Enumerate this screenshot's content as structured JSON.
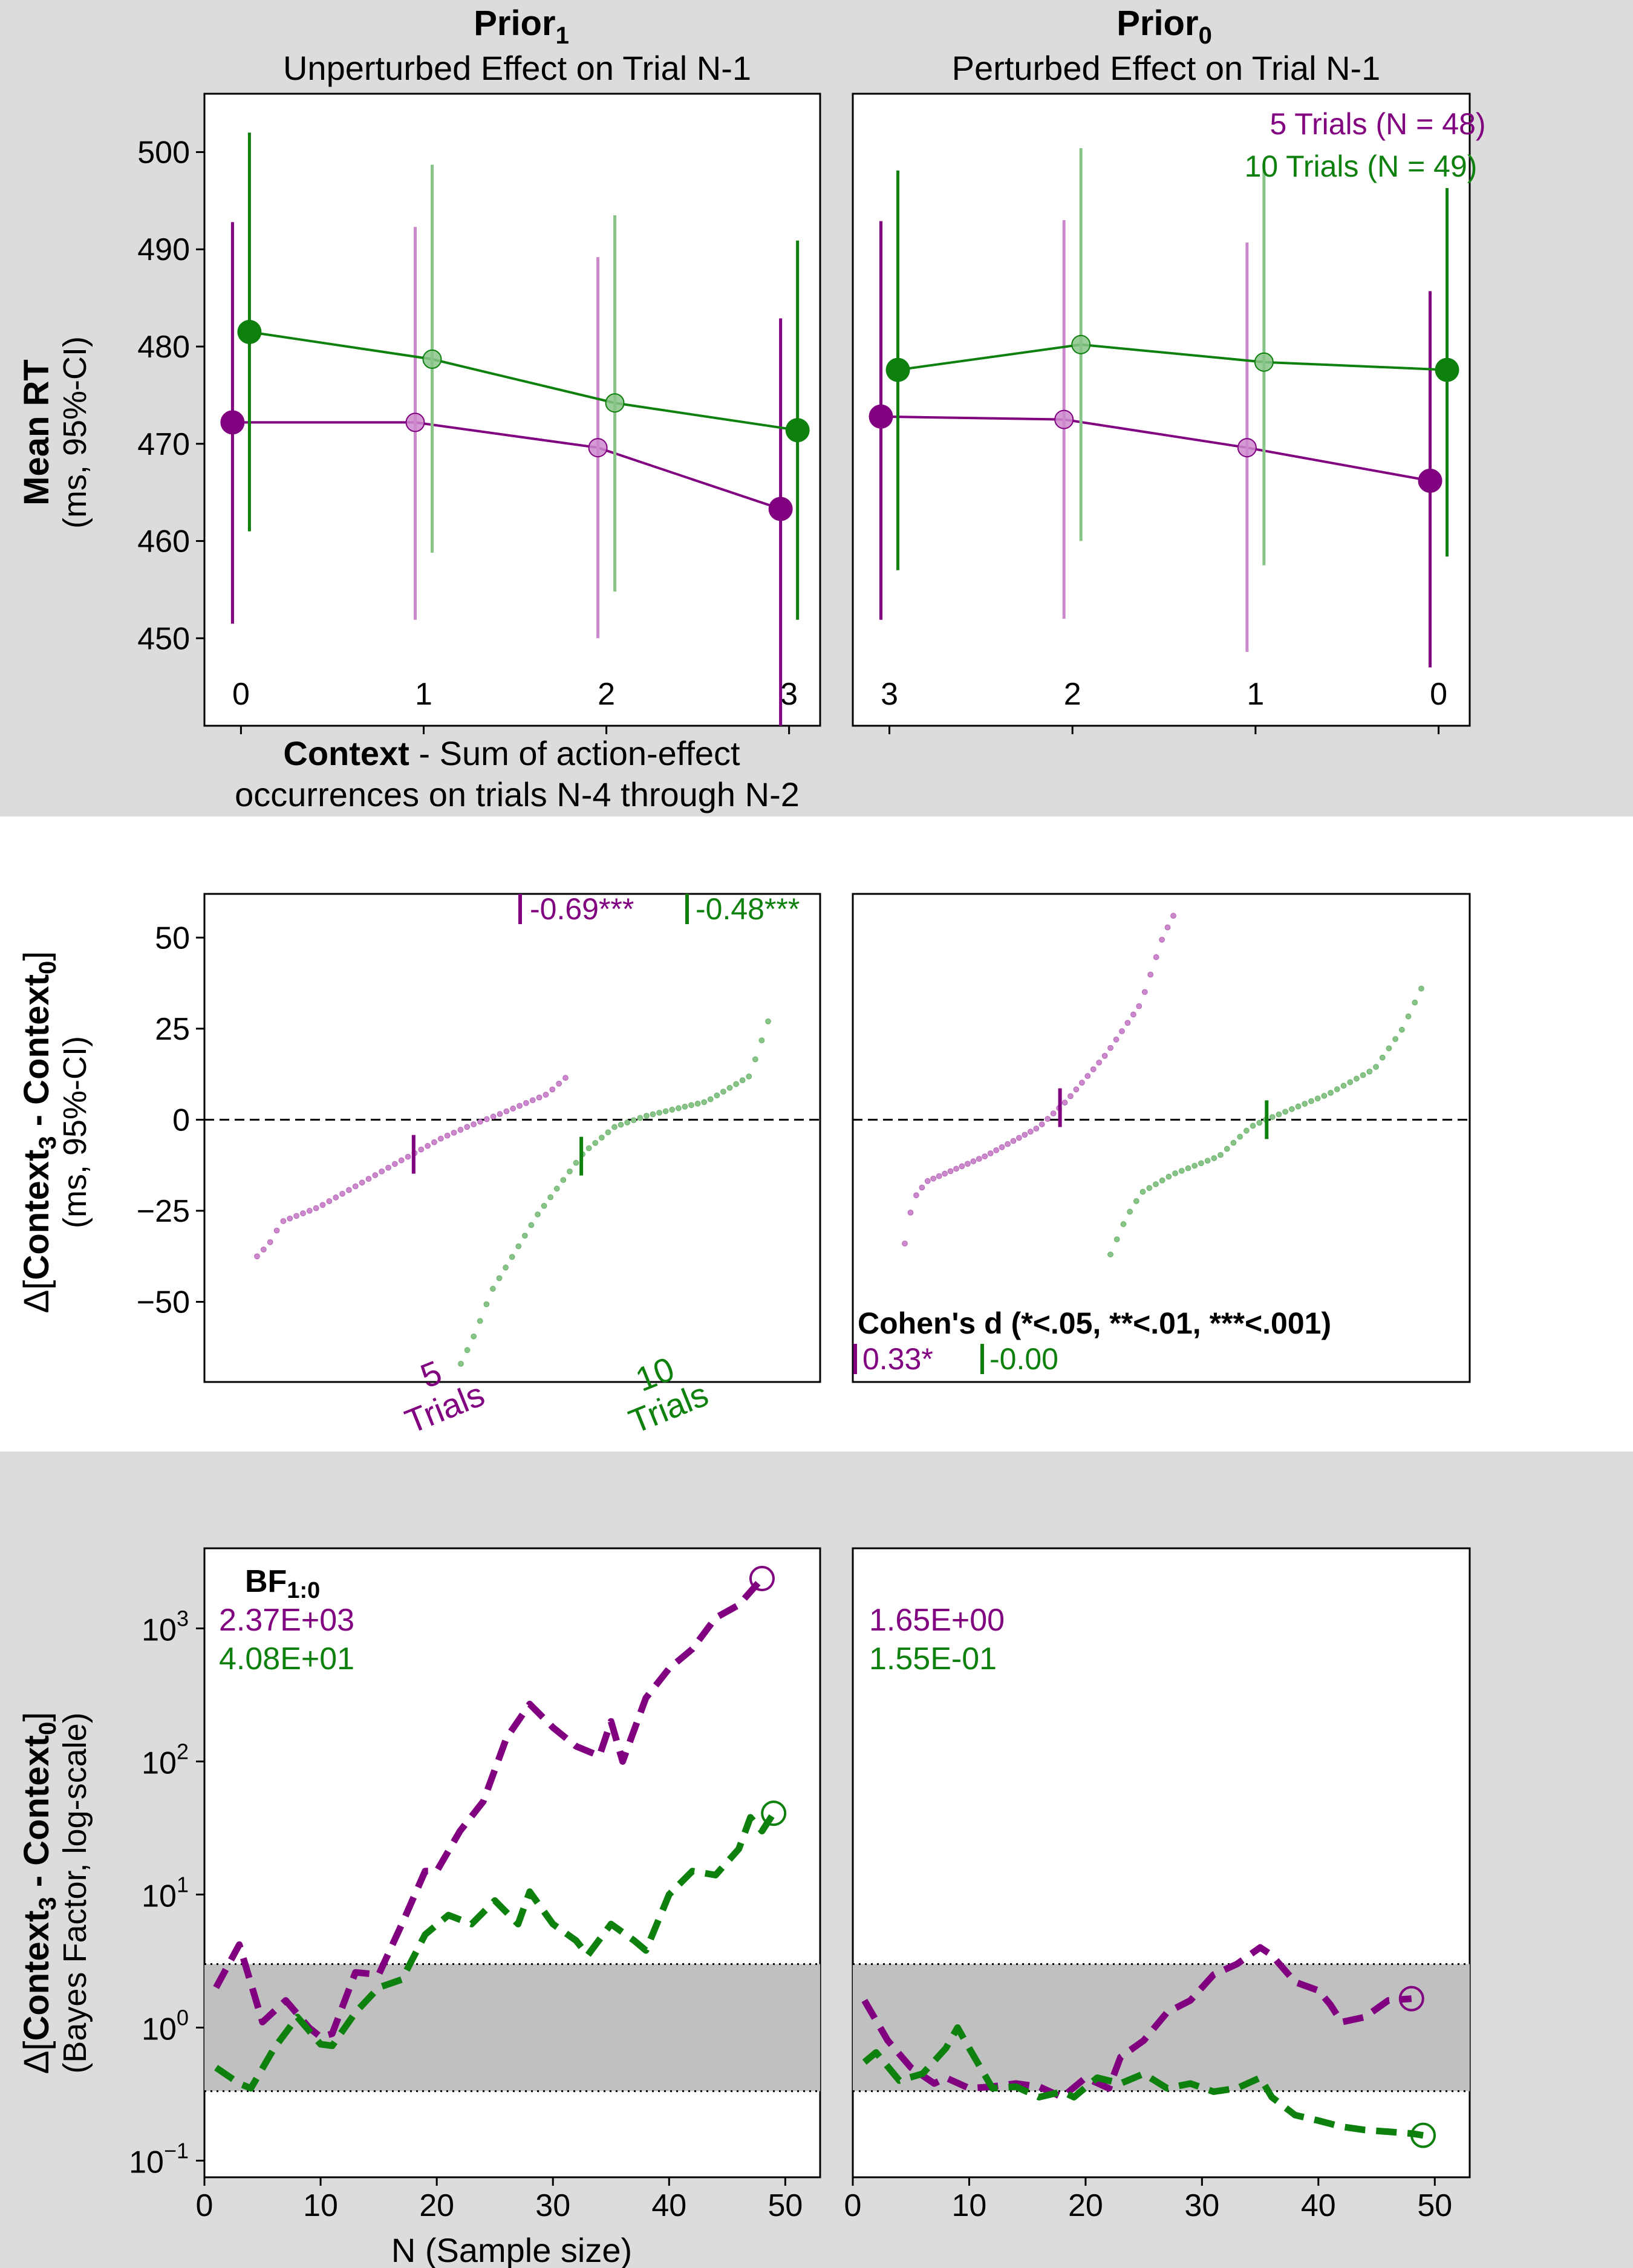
{
  "colors": {
    "purple": "#800080",
    "green": "#0e800e",
    "light_purple": "#cc88cc",
    "light_green": "#88c488",
    "band_bg": "#dcdcdc",
    "region": "#c0c0c0"
  },
  "row1": {
    "left": {
      "title_main": "Prior",
      "title_sub": "1",
      "subtitle": "Unperturbed Effect on Trial N-1"
    },
    "right": {
      "title_main": "Prior",
      "title_sub": "0",
      "subtitle": "Perturbed Effect on Trial N-1"
    },
    "ylabel_bold": "Mean RT",
    "ylabel_sub": "(ms, 95%-CI)",
    "xlabel_bold": "Context",
    "xlabel_rest": " - Sum of action-effect",
    "xlabel_line2": "occurrences on trials N-4 through N-2",
    "legend": [
      "5 Trials (N = 48)",
      "10 Trials (N = 49)"
    ]
  },
  "row2": {
    "ylabel_prefix": "Δ[",
    "ylabel_c3": "Context",
    "ylabel_c3_sub": "3",
    "ylabel_mid": " - ",
    "ylabel_c0": "Context",
    "ylabel_c0_sub": "0",
    "ylabel_suffix": "]",
    "ylabel_sub": "(ms, 95%-CI)",
    "left_d": [
      "-0.69***",
      "-0.48***"
    ],
    "right_d": [
      "0.33*",
      "-0.00"
    ],
    "cohen_label": "Cohen's d (*<.05, **<.01, ***<.001)",
    "label_5": [
      "5",
      "Trials"
    ],
    "label_10": [
      "10",
      "Trials"
    ]
  },
  "row3": {
    "ylabel_prefix": "Δ[",
    "ylabel_c3": "Context",
    "ylabel_c3_sub": "3",
    "ylabel_mid": " - ",
    "ylabel_c0": "Context",
    "ylabel_c0_sub": "0",
    "ylabel_suffix": "]",
    "ylabel_sub": "(Bayes Factor, log-scale)",
    "bf_label": "BF",
    "bf_sub": "1:0",
    "left_bf": [
      "2.37E+03",
      "4.08E+01"
    ],
    "right_bf": [
      "1.65E+00",
      "1.55E-01"
    ],
    "xlabel": "N (Sample size)"
  },
  "chart_data": [
    {
      "type": "line",
      "panel": "Prior 1 — Unperturbed Effect on Trial N-1",
      "categories": [
        "0",
        "1",
        "2",
        "3"
      ],
      "ylim": [
        441,
        506
      ],
      "yticks": [
        450,
        460,
        470,
        480,
        490,
        500
      ],
      "series": [
        {
          "name": "5 Trials (N = 48)",
          "means": [
            472.2,
            472.2,
            469.6,
            463.3
          ],
          "ci_low": [
            451.5,
            451.9,
            450.0,
            441.0
          ],
          "ci_high": [
            492.8,
            492.3,
            489.2,
            482.9
          ]
        },
        {
          "name": "10 Trials (N = 49)",
          "means": [
            481.5,
            478.7,
            474.2,
            471.4
          ],
          "ci_low": [
            461.0,
            458.8,
            454.8,
            451.9
          ],
          "ci_high": [
            502.0,
            498.7,
            493.5,
            490.9
          ]
        }
      ]
    },
    {
      "type": "line",
      "panel": "Prior 0 — Perturbed Effect on Trial N-1",
      "categories": [
        "3",
        "2",
        "1",
        "0"
      ],
      "ylim": [
        441,
        506
      ],
      "yticks": [
        450,
        460,
        470,
        480,
        490,
        500
      ],
      "series": [
        {
          "name": "5 Trials (N = 48)",
          "means": [
            472.8,
            472.5,
            469.6,
            466.2
          ],
          "ci_low": [
            451.9,
            452.0,
            448.6,
            447.0
          ],
          "ci_high": [
            492.9,
            493.0,
            490.7,
            485.7
          ]
        },
        {
          "name": "10 Trials (N = 49)",
          "means": [
            477.6,
            480.2,
            478.4,
            477.6
          ],
          "ci_low": [
            457.0,
            460.0,
            457.5,
            458.4
          ],
          "ci_high": [
            498.1,
            500.4,
            498.8,
            496.3
          ]
        }
      ]
    },
    {
      "type": "scatter",
      "panel": "Prior 1 — sorted differences",
      "ylim": [
        -72,
        62
      ],
      "yticks": [
        -50,
        -25,
        0,
        25,
        50
      ],
      "series": [
        {
          "name": "5 Trials",
          "y_range": [
            -37.5,
            11.5
          ],
          "mean_marker": -9.5,
          "knots": [
            [
              0,
              -37.5
            ],
            [
              0.04,
              -34
            ],
            [
              0.08,
              -28
            ],
            [
              0.2,
              -24
            ],
            [
              0.45,
              -12
            ],
            [
              0.6,
              -5
            ],
            [
              0.68,
              -2
            ],
            [
              0.8,
              2
            ],
            [
              0.94,
              7
            ],
            [
              1,
              11.5
            ]
          ]
        },
        {
          "name": "10 Trials",
          "y_range": [
            -67,
            27
          ],
          "mean_marker": -10,
          "knots": [
            [
              0,
              -67
            ],
            [
              0.05,
              -58
            ],
            [
              0.1,
              -47
            ],
            [
              0.25,
              -26
            ],
            [
              0.4,
              -9
            ],
            [
              0.5,
              -2
            ],
            [
              0.6,
              1
            ],
            [
              0.8,
              5
            ],
            [
              0.94,
              12
            ],
            [
              1,
              27
            ]
          ]
        }
      ]
    },
    {
      "type": "scatter",
      "panel": "Prior 0 — sorted differences",
      "ylim": [
        -72,
        62
      ],
      "yticks": [
        -50,
        -25,
        0,
        25,
        50
      ],
      "series": [
        {
          "name": "5 Trials",
          "y_range": [
            -34,
            56
          ],
          "mean_marker": 3.3,
          "knots": [
            [
              0,
              -34
            ],
            [
              0.03,
              -22
            ],
            [
              0.08,
              -17
            ],
            [
              0.3,
              -10
            ],
            [
              0.5,
              -2
            ],
            [
              0.6,
              5
            ],
            [
              0.75,
              18
            ],
            [
              0.88,
              32
            ],
            [
              0.96,
              50
            ],
            [
              1,
              56
            ]
          ]
        },
        {
          "name": "10 Trials",
          "y_range": [
            -37,
            36
          ],
          "mean_marker": 0,
          "knots": [
            [
              0,
              -37
            ],
            [
              0.05,
              -27
            ],
            [
              0.1,
              -20
            ],
            [
              0.2,
              -15
            ],
            [
              0.35,
              -10
            ],
            [
              0.45,
              -2
            ],
            [
              0.5,
              0
            ],
            [
              0.7,
              7
            ],
            [
              0.85,
              14
            ],
            [
              0.94,
              25
            ],
            [
              1,
              36
            ]
          ]
        }
      ]
    },
    {
      "type": "line",
      "panel": "Prior 1 — Bayes factor sequential",
      "yscale": "log",
      "xlim": [
        0,
        53
      ],
      "ylim": [
        0.075,
        4000
      ],
      "xticks": [
        0,
        10,
        20,
        30,
        40,
        50
      ],
      "shaded_range": [
        0.333,
        3
      ],
      "series": [
        {
          "name": "5 Trials",
          "final": 2370,
          "points": [
            [
              1,
              2
            ],
            [
              3,
              4.2
            ],
            [
              5,
              1.1
            ],
            [
              7,
              1.6
            ],
            [
              9,
              1
            ],
            [
              10,
              0.85
            ],
            [
              11,
              0.9
            ],
            [
              13,
              2.6
            ],
            [
              15,
              2.5
            ],
            [
              17,
              6
            ],
            [
              19,
              15
            ],
            [
              20,
              15
            ],
            [
              22,
              30
            ],
            [
              24,
              50
            ],
            [
              26,
              150
            ],
            [
              28,
              270
            ],
            [
              30,
              180
            ],
            [
              32,
              130
            ],
            [
              34,
              110
            ],
            [
              35,
              200
            ],
            [
              36,
              100
            ],
            [
              38,
              300
            ],
            [
              40,
              500
            ],
            [
              42,
              700
            ],
            [
              44,
              1200
            ],
            [
              46,
              1500
            ],
            [
              48,
              2370
            ]
          ]
        },
        {
          "name": "10 Trials",
          "final": 40.8,
          "points": [
            [
              1,
              0.5
            ],
            [
              3,
              0.38
            ],
            [
              4,
              0.35
            ],
            [
              6,
              0.7
            ],
            [
              8,
              1.2
            ],
            [
              10,
              0.75
            ],
            [
              11,
              0.73
            ],
            [
              13,
              1.3
            ],
            [
              15,
              2
            ],
            [
              17,
              2.3
            ],
            [
              19,
              5
            ],
            [
              21,
              7
            ],
            [
              23,
              6
            ],
            [
              25,
              9
            ],
            [
              27,
              6
            ],
            [
              28,
              10.5
            ],
            [
              30,
              6
            ],
            [
              32,
              4.5
            ],
            [
              33,
              3.5
            ],
            [
              35,
              6
            ],
            [
              37,
              4.5
            ],
            [
              38,
              3.8
            ],
            [
              40,
              10
            ],
            [
              42,
              15
            ],
            [
              44,
              14
            ],
            [
              46,
              22
            ],
            [
              47,
              38
            ],
            [
              48,
              30
            ],
            [
              49,
              40.8
            ]
          ]
        }
      ]
    },
    {
      "type": "line",
      "panel": "Prior 0 — Bayes factor sequential",
      "yscale": "log",
      "xlim": [
        0,
        53
      ],
      "ylim": [
        0.075,
        4000
      ],
      "xticks": [
        0,
        10,
        20,
        30,
        40,
        50
      ],
      "shaded_range": [
        0.333,
        3
      ],
      "series": [
        {
          "name": "5 Trials",
          "final": 1.65,
          "points": [
            [
              1,
              1.6
            ],
            [
              3,
              0.8
            ],
            [
              5,
              0.5
            ],
            [
              7,
              0.38
            ],
            [
              8,
              0.42
            ],
            [
              10,
              0.35
            ],
            [
              12,
              0.36
            ],
            [
              14,
              0.38
            ],
            [
              16,
              0.36
            ],
            [
              18,
              0.3
            ],
            [
              20,
              0.42
            ],
            [
              22,
              0.35
            ],
            [
              23,
              0.6
            ],
            [
              25,
              0.8
            ],
            [
              27,
              1.3
            ],
            [
              29,
              1.6
            ],
            [
              31,
              2.5
            ],
            [
              33,
              3
            ],
            [
              35,
              4
            ],
            [
              36,
              3.5
            ],
            [
              38,
              2.2
            ],
            [
              40,
              1.9
            ],
            [
              41,
              1.5
            ],
            [
              42,
              1.1
            ],
            [
              44,
              1.2
            ],
            [
              46,
              1.6
            ],
            [
              48,
              1.65
            ]
          ]
        },
        {
          "name": "10 Trials",
          "final": 0.155,
          "points": [
            [
              1,
              0.55
            ],
            [
              2,
              0.65
            ],
            [
              4,
              0.4
            ],
            [
              6,
              0.45
            ],
            [
              8,
              0.7
            ],
            [
              9,
              1
            ],
            [
              10,
              0.7
            ],
            [
              12,
              0.35
            ],
            [
              14,
              0.36
            ],
            [
              16,
              0.3
            ],
            [
              18,
              0.33
            ],
            [
              19,
              0.3
            ],
            [
              21,
              0.42
            ],
            [
              23,
              0.38
            ],
            [
              25,
              0.45
            ],
            [
              27,
              0.35
            ],
            [
              29,
              0.38
            ],
            [
              31,
              0.33
            ],
            [
              33,
              0.35
            ],
            [
              35,
              0.42
            ],
            [
              36,
              0.3
            ],
            [
              38,
              0.22
            ],
            [
              40,
              0.2
            ],
            [
              42,
              0.18
            ],
            [
              44,
              0.17
            ],
            [
              46,
              0.165
            ],
            [
              48,
              0.16
            ],
            [
              49,
              0.155
            ]
          ]
        }
      ]
    }
  ]
}
